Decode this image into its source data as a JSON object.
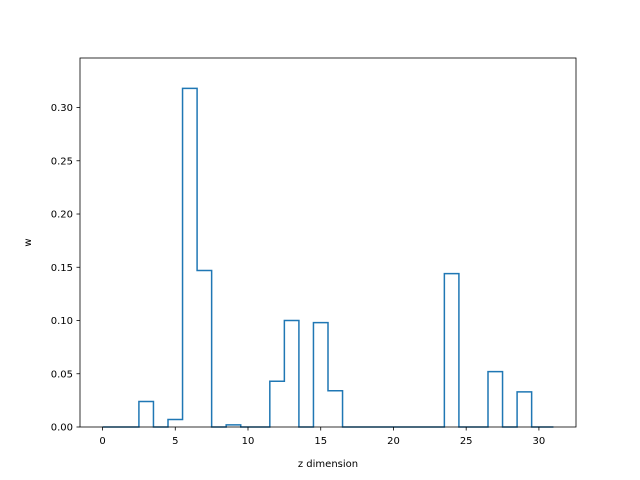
{
  "chart_data": {
    "type": "step",
    "title": "",
    "xlabel": "z dimension",
    "ylabel": "w",
    "xlim": [
      -1.55,
      32.55
    ],
    "ylim": [
      0,
      0.3465
    ],
    "xticks": [
      0,
      5,
      10,
      15,
      20,
      25,
      30
    ],
    "yticks": [
      0.0,
      0.05,
      0.1,
      0.15,
      0.2,
      0.25,
      0.3
    ],
    "ytick_labels": [
      "0.00",
      "0.05",
      "0.10",
      "0.15",
      "0.20",
      "0.25",
      "0.30"
    ],
    "xtick_labels": [
      "0",
      "5",
      "10",
      "15",
      "20",
      "25",
      "30"
    ],
    "step_where": "mid",
    "x": [
      0,
      1,
      2,
      3,
      4,
      5,
      6,
      7,
      8,
      9,
      10,
      11,
      12,
      13,
      14,
      15,
      16,
      17,
      18,
      19,
      20,
      21,
      22,
      23,
      24,
      25,
      26,
      27,
      28,
      29,
      30,
      31
    ],
    "values": [
      0.0,
      0.0,
      0.0,
      0.024,
      0.0,
      0.007,
      0.318,
      0.147,
      0.0,
      0.002,
      0.0,
      0.0,
      0.043,
      0.1,
      0.0,
      0.098,
      0.034,
      0.0,
      0.0,
      0.0,
      0.0,
      0.0,
      0.0,
      0.0,
      0.144,
      0.0,
      0.0,
      0.052,
      0.0,
      0.033,
      0.0,
      0.0
    ],
    "grid": false,
    "line_color": "#1f77b4"
  }
}
